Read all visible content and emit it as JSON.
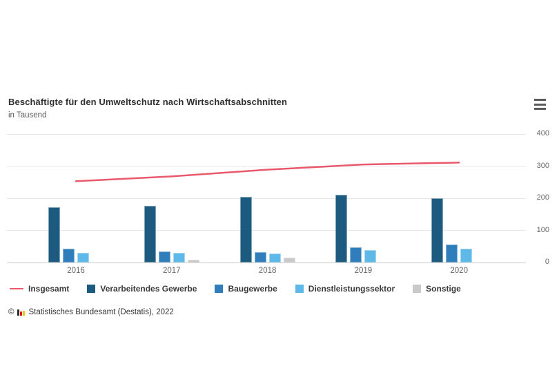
{
  "header": {
    "title": "Beschäftigte für den Umweltschutz nach Wirtschaftsabschnitten",
    "subtitle": "in Tausend"
  },
  "menu": {
    "icon": "hamburger-menu"
  },
  "footer": {
    "copyright_symbol": "©",
    "text": "Statistisches Bundesamt (Destatis), 2022",
    "logo_colors": [
      "#2b2b2b",
      "#d7141c",
      "#f0c400"
    ]
  },
  "colors": {
    "grid": "#e7e7e7",
    "axis_line": "#cfcfcf",
    "axis_text": "#666666",
    "title_text": "#2f2f2f",
    "legend_text": "#3a3a3a"
  },
  "chart_data": {
    "type": "combo-bar-line",
    "title": "Beschäftigte für den Umweltschutz nach Wirtschaftsabschnitten",
    "subtitle": "in Tausend",
    "categories": [
      "2016",
      "2017",
      "2018",
      "2019",
      "2020"
    ],
    "bar_series": [
      {
        "name": "Verarbeitendes Gewerbe",
        "color": "#1d5a80",
        "values": [
          172,
          176,
          205,
          211,
          201
        ]
      },
      {
        "name": "Baugewerbe",
        "color": "#2f7dba",
        "values": [
          43,
          34,
          32,
          48,
          55
        ]
      },
      {
        "name": "Dienstleistungssektor",
        "color": "#5eb8e8",
        "values": [
          30,
          30,
          28,
          39,
          43
        ]
      },
      {
        "name": "Sonstige",
        "color": "#c9c9c9",
        "values": [
          0,
          9,
          14,
          0,
          0
        ]
      }
    ],
    "line_series": [
      {
        "name": "Insgesamt",
        "color": "#e9586b",
        "values": [
          252,
          267,
          288,
          304,
          310
        ]
      }
    ],
    "ylim": [
      0,
      400
    ],
    "yticks": [
      0,
      100,
      200,
      300,
      400
    ],
    "grid": true,
    "y_axis_side": "right",
    "legend_position": "bottom",
    "legend_order": [
      "Insgesamt",
      "Verarbeitendes Gewerbe",
      "Baugewerbe",
      "Dienstleistungssektor",
      "Sonstige"
    ]
  }
}
